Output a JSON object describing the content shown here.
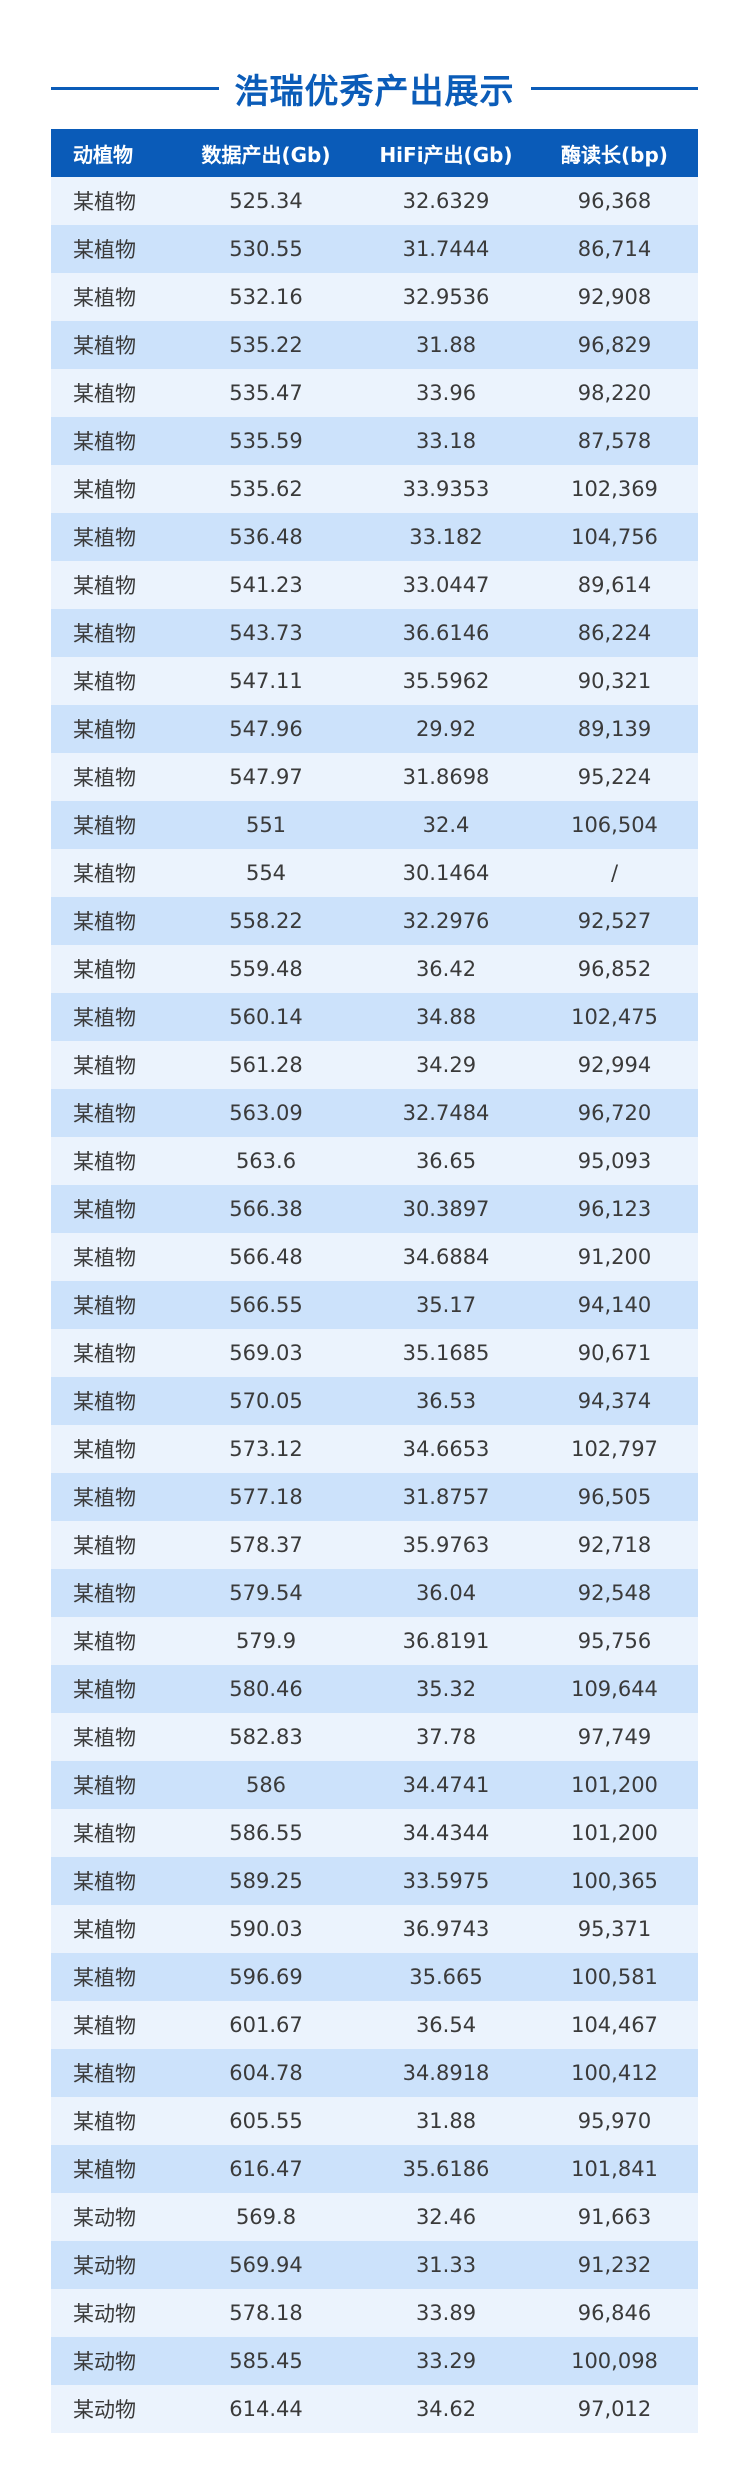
{
  "title": "浩瑞优秀产出展示",
  "colors": {
    "accent": "#0a5bb8",
    "row_light": "#ebf3fd",
    "row_alt": "#cce2fb"
  },
  "table": {
    "headers": [
      "动植物",
      "数据产出(Gb)",
      "HiFi产出(Gb)",
      "酶读长(bp)"
    ],
    "rows": [
      [
        "某植物",
        "525.34",
        "32.6329",
        "96,368"
      ],
      [
        "某植物",
        "530.55",
        "31.7444",
        "86,714"
      ],
      [
        "某植物",
        "532.16",
        "32.9536",
        "92,908"
      ],
      [
        "某植物",
        "535.22",
        "31.88",
        "96,829"
      ],
      [
        "某植物",
        "535.47",
        "33.96",
        "98,220"
      ],
      [
        "某植物",
        "535.59",
        "33.18",
        "87,578"
      ],
      [
        "某植物",
        "535.62",
        "33.9353",
        "102,369"
      ],
      [
        "某植物",
        "536.48",
        "33.182",
        "104,756"
      ],
      [
        "某植物",
        "541.23",
        "33.0447",
        "89,614"
      ],
      [
        "某植物",
        "543.73",
        "36.6146",
        "86,224"
      ],
      [
        "某植物",
        "547.11",
        "35.5962",
        "90,321"
      ],
      [
        "某植物",
        "547.96",
        "29.92",
        "89,139"
      ],
      [
        "某植物",
        "547.97",
        "31.8698",
        "95,224"
      ],
      [
        "某植物",
        "551",
        "32.4",
        "106,504"
      ],
      [
        "某植物",
        "554",
        "30.1464",
        "/"
      ],
      [
        "某植物",
        "558.22",
        "32.2976",
        "92,527"
      ],
      [
        "某植物",
        "559.48",
        "36.42",
        "96,852"
      ],
      [
        "某植物",
        "560.14",
        "34.88",
        "102,475"
      ],
      [
        "某植物",
        "561.28",
        "34.29",
        "92,994"
      ],
      [
        "某植物",
        "563.09",
        "32.7484",
        "96,720"
      ],
      [
        "某植物",
        "563.6",
        "36.65",
        "95,093"
      ],
      [
        "某植物",
        "566.38",
        "30.3897",
        "96,123"
      ],
      [
        "某植物",
        "566.48",
        "34.6884",
        "91,200"
      ],
      [
        "某植物",
        "566.55",
        "35.17",
        "94,140"
      ],
      [
        "某植物",
        "569.03",
        "35.1685",
        "90,671"
      ],
      [
        "某植物",
        "570.05",
        "36.53",
        "94,374"
      ],
      [
        "某植物",
        "573.12",
        "34.6653",
        "102,797"
      ],
      [
        "某植物",
        "577.18",
        "31.8757",
        "96,505"
      ],
      [
        "某植物",
        "578.37",
        "35.9763",
        "92,718"
      ],
      [
        "某植物",
        "579.54",
        "36.04",
        "92,548"
      ],
      [
        "某植物",
        "579.9",
        "36.8191",
        "95,756"
      ],
      [
        "某植物",
        "580.46",
        "35.32",
        "109,644"
      ],
      [
        "某植物",
        "582.83",
        "37.78",
        "97,749"
      ],
      [
        "某植物",
        "586",
        "34.4741",
        "101,200"
      ],
      [
        "某植物",
        "586.55",
        "34.4344",
        "101,200"
      ],
      [
        "某植物",
        "589.25",
        "33.5975",
        "100,365"
      ],
      [
        "某植物",
        "590.03",
        "36.9743",
        "95,371"
      ],
      [
        "某植物",
        "596.69",
        "35.665",
        "100,581"
      ],
      [
        "某植物",
        "601.67",
        "36.54",
        "104,467"
      ],
      [
        "某植物",
        "604.78",
        "34.8918",
        "100,412"
      ],
      [
        "某植物",
        "605.55",
        "31.88",
        "95,970"
      ],
      [
        "某植物",
        "616.47",
        "35.6186",
        "101,841"
      ],
      [
        "某动物",
        "569.8",
        "32.46",
        "91,663"
      ],
      [
        "某动物",
        "569.94",
        "31.33",
        "91,232"
      ],
      [
        "某动物",
        "578.18",
        "33.89",
        "96,846"
      ],
      [
        "某动物",
        "585.45",
        "33.29",
        "100,098"
      ],
      [
        "某动物",
        "614.44",
        "34.62",
        "97,012"
      ]
    ]
  }
}
